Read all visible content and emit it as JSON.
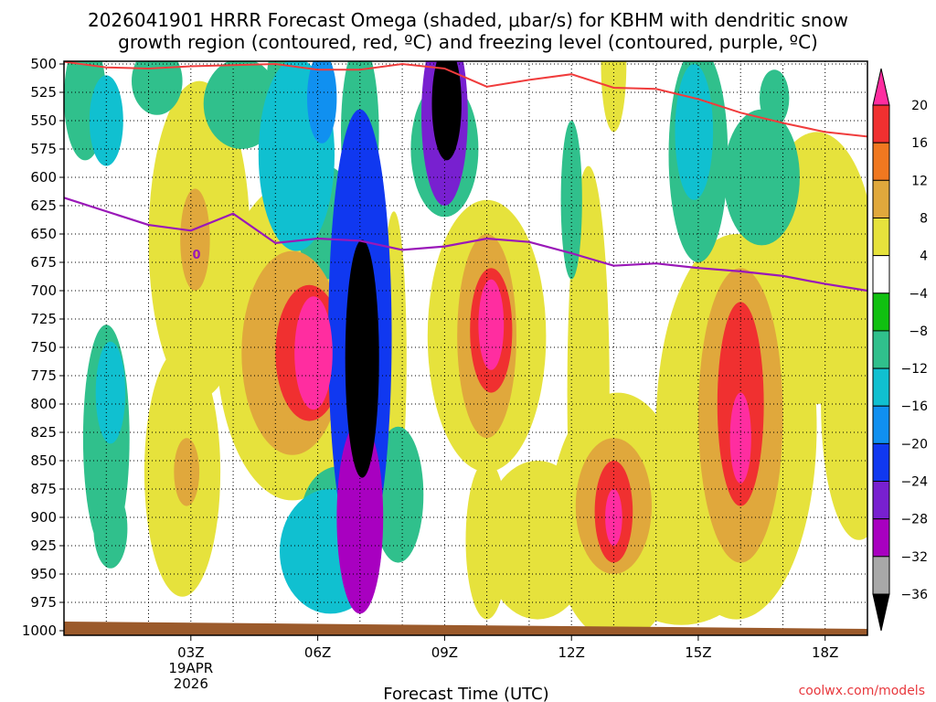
{
  "chart_data": {
    "type": "heatmap",
    "title_line1": "2026041901 HRRR Forecast Omega (shaded, μbar/s) for KBHM with dendritic snow",
    "title_line2": "growth region (contoured, red, ºC) and freezing level (contoured, purple, ºC)",
    "xlabel": "Forecast Time (UTC)",
    "ylabel": "",
    "x_range_hours": [
      0,
      19
    ],
    "x_ticks": [
      {
        "h": 3,
        "label": "03Z",
        "sub1": "19APR",
        "sub2": "2026"
      },
      {
        "h": 6,
        "label": "06Z"
      },
      {
        "h": 9,
        "label": "09Z"
      },
      {
        "h": 12,
        "label": "12Z"
      },
      {
        "h": 15,
        "label": "15Z"
      },
      {
        "h": 18,
        "label": "18Z"
      }
    ],
    "y_range_mb": [
      1000,
      500
    ],
    "y_ticks": [
      "500",
      "525",
      "550",
      "575",
      "600",
      "625",
      "650",
      "675",
      "700",
      "725",
      "750",
      "775",
      "800",
      "825",
      "850",
      "875",
      "900",
      "925",
      "950",
      "975",
      "1000"
    ],
    "colorbar": {
      "labels": [
        "20",
        "16",
        "12",
        "8",
        "4",
        "−4",
        "−8",
        "−12",
        "−16",
        "−20",
        "−24",
        "−28",
        "−32",
        "−36"
      ],
      "colors": [
        "#ff2da0",
        "#f03030",
        "#f07820",
        "#e0a83c",
        "#e6e23c",
        "#ffffff",
        "#10c010",
        "#30c08c",
        "#10c0d0",
        "#1090f0",
        "#1038f0",
        "#7820d0",
        "#a800c0",
        "#a8a8a8",
        "#000000"
      ]
    },
    "freezing_level": {
      "label": "0",
      "hours": [
        0,
        2,
        3,
        4,
        5,
        6,
        7,
        8,
        9,
        10,
        11,
        12,
        13,
        14,
        15,
        16,
        17,
        18,
        19
      ],
      "mb": [
        618,
        642,
        647,
        632,
        658,
        654,
        656,
        664,
        661,
        654,
        657,
        667,
        678,
        676,
        680,
        683,
        687,
        694,
        700
      ]
    },
    "dgz_contour": {
      "hours": [
        0,
        1,
        2,
        3,
        4,
        5,
        6,
        7,
        8,
        9,
        10,
        11,
        12,
        13,
        14,
        15,
        16,
        17,
        18,
        19
      ],
      "mb": [
        498,
        503,
        504,
        502,
        501,
        500,
        505,
        505,
        500,
        504,
        520,
        514,
        509,
        521,
        522,
        531,
        543,
        552,
        560,
        564
      ]
    },
    "omega_cells": [
      {
        "h": 0.5,
        "mb": 530,
        "rh": 0.5,
        "rmb": 55,
        "v": -10
      },
      {
        "h": 1.0,
        "mb": 550,
        "rh": 0.4,
        "rmb": 40,
        "v": -14
      },
      {
        "h": 2.2,
        "mb": 515,
        "rh": 0.6,
        "rmb": 30,
        "v": -9
      },
      {
        "h": 4.2,
        "mb": 535,
        "rh": 0.9,
        "rmb": 40,
        "v": -9
      },
      {
        "h": 5.2,
        "mb": 510,
        "rh": 0.4,
        "rmb": 30,
        "v": -10
      },
      {
        "h": 5.5,
        "mb": 580,
        "rh": 0.9,
        "rmb": 85,
        "v": -14
      },
      {
        "h": 6.1,
        "mb": 530,
        "rh": 0.35,
        "rmb": 40,
        "v": -18
      },
      {
        "h": 6.2,
        "mb": 640,
        "rh": 0.7,
        "rmb": 50,
        "v": -10
      },
      {
        "h": 7.0,
        "mb": 560,
        "rh": 0.45,
        "rmb": 80,
        "v": -10
      },
      {
        "h": 7.0,
        "mb": 740,
        "rh": 0.75,
        "rmb": 200,
        "v": -22
      },
      {
        "h": 7.05,
        "mb": 760,
        "rh": 0.4,
        "rmb": 105,
        "v": -38
      },
      {
        "h": 7.0,
        "mb": 900,
        "rh": 0.55,
        "rmb": 85,
        "v": -28
      },
      {
        "h": 6.3,
        "mb": 930,
        "rh": 1.2,
        "rmb": 55,
        "v": -14
      },
      {
        "h": 6.5,
        "mb": 900,
        "rh": 0.9,
        "rmb": 45,
        "v": -9
      },
      {
        "h": 7.9,
        "mb": 880,
        "rh": 0.6,
        "rmb": 60,
        "v": -9
      },
      {
        "h": 9.0,
        "mb": 545,
        "rh": 0.55,
        "rmb": 80,
        "v": -24
      },
      {
        "h": 9.05,
        "mb": 535,
        "rh": 0.35,
        "rmb": 50,
        "v": -38
      },
      {
        "h": 9.0,
        "mb": 575,
        "rh": 0.8,
        "rmb": 60,
        "v": -10
      },
      {
        "h": 1.1,
        "mb": 790,
        "rh": 0.35,
        "rmb": 45,
        "v": -12
      },
      {
        "h": 1.0,
        "mb": 830,
        "rh": 0.55,
        "rmb": 100,
        "v": -8
      },
      {
        "h": 1.1,
        "mb": 910,
        "rh": 0.4,
        "rmb": 35,
        "v": -10
      },
      {
        "h": 12.0,
        "mb": 620,
        "rh": 0.25,
        "rmb": 70,
        "v": -9
      },
      {
        "h": 14.9,
        "mb": 560,
        "rh": 0.45,
        "rmb": 60,
        "v": -14
      },
      {
        "h": 15.0,
        "mb": 580,
        "rh": 0.7,
        "rmb": 95,
        "v": -9
      },
      {
        "h": 16.5,
        "mb": 600,
        "rh": 0.9,
        "rmb": 60,
        "v": -8
      },
      {
        "h": 16.8,
        "mb": 530,
        "rh": 0.35,
        "rmb": 25,
        "v": -9
      },
      {
        "h": 3.2,
        "mb": 655,
        "rh": 1.2,
        "rmb": 140,
        "v": 4
      },
      {
        "h": 3.1,
        "mb": 655,
        "rh": 0.35,
        "rmb": 45,
        "v": 9
      },
      {
        "h": 5.4,
        "mb": 745,
        "rh": 1.8,
        "rmb": 140,
        "v": 6
      },
      {
        "h": 5.4,
        "mb": 755,
        "rh": 1.2,
        "rmb": 90,
        "v": 10
      },
      {
        "h": 5.8,
        "mb": 755,
        "rh": 0.8,
        "rmb": 60,
        "v": 16
      },
      {
        "h": 5.9,
        "mb": 755,
        "rh": 0.45,
        "rmb": 50,
        "v": 22
      },
      {
        "h": 2.8,
        "mb": 860,
        "rh": 0.9,
        "rmb": 110,
        "v": 5
      },
      {
        "h": 2.9,
        "mb": 860,
        "rh": 0.3,
        "rmb": 30,
        "v": 9
      },
      {
        "h": 10.0,
        "mb": 740,
        "rh": 1.4,
        "rmb": 120,
        "v": 5
      },
      {
        "h": 10.0,
        "mb": 740,
        "rh": 0.7,
        "rmb": 90,
        "v": 10
      },
      {
        "h": 10.1,
        "mb": 735,
        "rh": 0.5,
        "rmb": 55,
        "v": 16
      },
      {
        "h": 10.1,
        "mb": 730,
        "rh": 0.3,
        "rmb": 40,
        "v": 22
      },
      {
        "h": 10.0,
        "mb": 920,
        "rh": 0.5,
        "rmb": 70,
        "v": 5
      },
      {
        "h": 13.0,
        "mb": 500,
        "rh": 0.3,
        "rmb": 60,
        "v": 5
      },
      {
        "h": 12.4,
        "mb": 790,
        "rh": 0.5,
        "rmb": 200,
        "v": 5
      },
      {
        "h": 13.1,
        "mb": 900,
        "rh": 1.6,
        "rmb": 110,
        "v": 5
      },
      {
        "h": 13.0,
        "mb": 890,
        "rh": 0.9,
        "rmb": 60,
        "v": 10
      },
      {
        "h": 13.0,
        "mb": 895,
        "rh": 0.45,
        "rmb": 45,
        "v": 16
      },
      {
        "h": 13.0,
        "mb": 900,
        "rh": 0.2,
        "rmb": 25,
        "v": 22
      },
      {
        "h": 15.9,
        "mb": 820,
        "rh": 1.9,
        "rmb": 170,
        "v": 5
      },
      {
        "h": 16.0,
        "mb": 810,
        "rh": 1.0,
        "rmb": 130,
        "v": 10
      },
      {
        "h": 16.0,
        "mb": 800,
        "rh": 0.55,
        "rmb": 90,
        "v": 16
      },
      {
        "h": 16.0,
        "mb": 830,
        "rh": 0.25,
        "rmb": 40,
        "v": 22
      },
      {
        "h": 17.8,
        "mb": 680,
        "rh": 1.4,
        "rmb": 120,
        "v": 5
      },
      {
        "h": 18.8,
        "mb": 800,
        "rh": 0.9,
        "rmb": 120,
        "v": 5
      },
      {
        "h": 14.6,
        "mb": 930,
        "rh": 1.8,
        "rmb": 65,
        "v": 5
      },
      {
        "h": 11.2,
        "mb": 920,
        "rh": 1.3,
        "rmb": 70,
        "v": 5
      },
      {
        "h": 7.8,
        "mb": 760,
        "rh": 0.3,
        "rmb": 130,
        "v": 5
      }
    ],
    "source": "coolwx.com/models"
  }
}
